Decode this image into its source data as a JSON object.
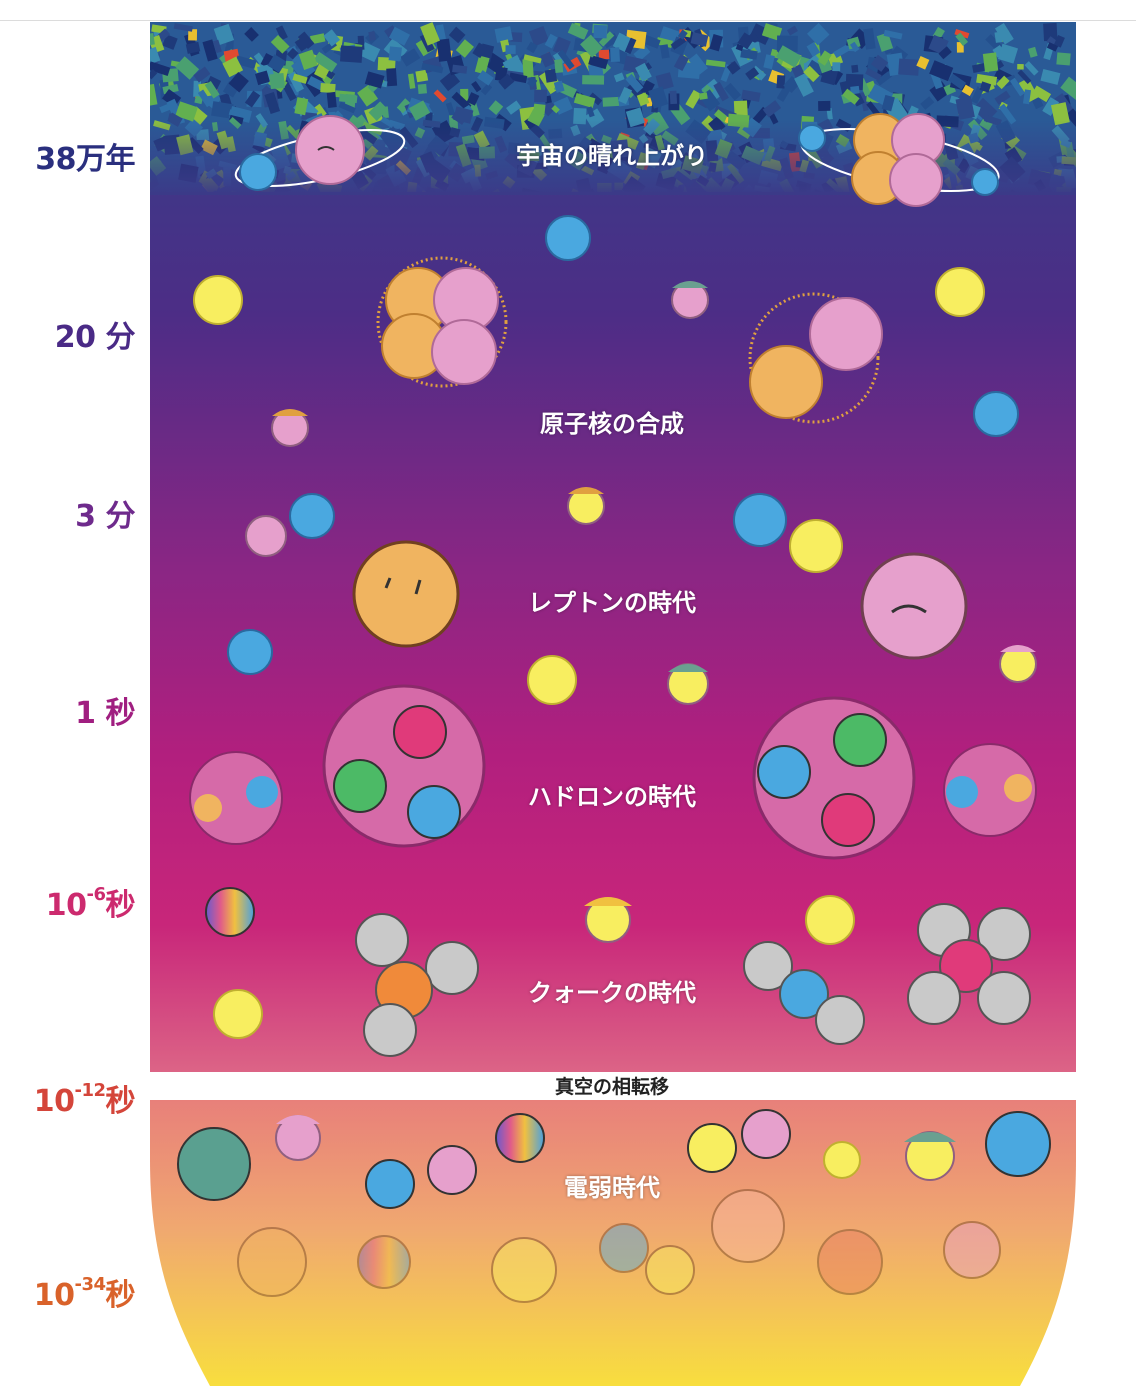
{
  "time_labels": [
    {
      "value": "38万年",
      "color": "#2a2f7e"
    },
    {
      "value": "20 分",
      "color": "#4a2a86"
    },
    {
      "value": "3 分",
      "color": "#6e2a8c"
    },
    {
      "value": "1 秒",
      "color": "#a01e80"
    },
    {
      "value": "10",
      "sup": "-6",
      "unit": "秒",
      "color": "#cc2a6e"
    },
    {
      "value": "10",
      "sup": "-12",
      "unit": "秒",
      "color": "#d4453a"
    },
    {
      "value": "10",
      "sup": "-34",
      "unit": "秒",
      "color": "#d9622a"
    }
  ],
  "era_labels": [
    {
      "text": "宇宙の晴れ上がり"
    },
    {
      "text": "原子核の合成"
    },
    {
      "text": "レプトンの時代"
    },
    {
      "text": "ハドロンの時代"
    },
    {
      "text": "クォークの時代"
    },
    {
      "text": "電弱時代"
    }
  ],
  "transition_label": "真空の相転移",
  "colors": {
    "cmb_dark": "#1e3a7a",
    "purple": "#4a2d86",
    "magenta": "#c2207e",
    "pink": "#d85682",
    "salmon": "#e8847a",
    "yellow": "#f8dc40",
    "particle_pink": "#e6a0cc",
    "particle_orange": "#f0b460",
    "particle_blue": "#4aa8e0",
    "particle_yellow": "#f8ee60",
    "particle_green": "#4cba66",
    "particle_gray": "#c9c9c9"
  }
}
